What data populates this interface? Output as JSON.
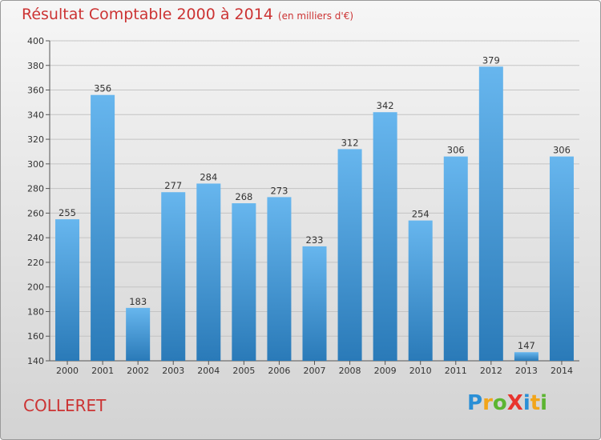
{
  "header": {
    "title": "Résultat Comptable 2000 à 2014",
    "subtitle": "(en milliers d'€)"
  },
  "footer": {
    "commune": "COLLERET",
    "logo_letters": [
      {
        "char": "P",
        "color": "#2a8fd6"
      },
      {
        "char": "r",
        "color": "#f2a51a"
      },
      {
        "char": "o",
        "color": "#5cb531"
      },
      {
        "char": "X",
        "color": "#e8342e"
      },
      {
        "char": "i",
        "color": "#2a8fd6"
      },
      {
        "char": "t",
        "color": "#f2a51a"
      },
      {
        "char": "i",
        "color": "#5cb531"
      }
    ]
  },
  "chart_data": {
    "type": "bar",
    "categories": [
      "2000",
      "2001",
      "2002",
      "2003",
      "2004",
      "2005",
      "2006",
      "2007",
      "2008",
      "2009",
      "2010",
      "2011",
      "2012",
      "2013",
      "2014"
    ],
    "values": [
      255,
      356,
      183,
      277,
      284,
      268,
      273,
      233,
      312,
      342,
      254,
      306,
      379,
      147,
      306
    ],
    "ylim": [
      140,
      400
    ],
    "yticks": [
      140,
      160,
      180,
      200,
      220,
      240,
      260,
      280,
      300,
      320,
      340,
      360,
      380,
      400
    ],
    "grid": true,
    "bar_color_light": "#67b6ee",
    "bar_color_dark": "#2a7ab8"
  }
}
